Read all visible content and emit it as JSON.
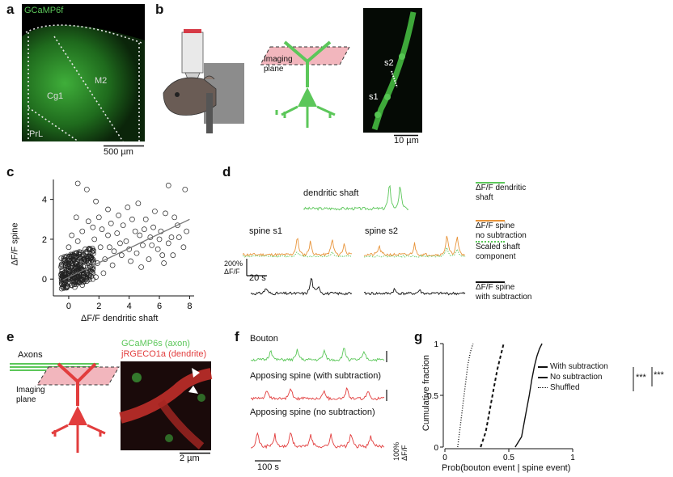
{
  "colors": {
    "green": "#5cc75a",
    "orange": "#e8943a",
    "red": "#e23d3d",
    "dark": "#111111",
    "pink": "#f2b6bd"
  },
  "panels": {
    "a": "a",
    "b": "b",
    "c": "c",
    "d": "d",
    "e": "e",
    "f": "f",
    "g": "g"
  },
  "a": {
    "indicator": "GCaMP6f",
    "regions": [
      "M2",
      "Cg1",
      "PrL"
    ],
    "scalebar": "500 µm"
  },
  "b": {
    "imaging_plane": "Imaging\nplane",
    "spines": [
      "s2",
      "s1"
    ],
    "scalebar": "10 µm"
  },
  "c": {
    "xlabel": "ΔF/F dendritic shaft",
    "ylabel": "ΔF/F spine"
  },
  "chart_data": {
    "type": "scatter",
    "xlabel": "ΔF/F dendritic shaft",
    "ylabel": "ΔF/F spine",
    "xticks": [
      "0",
      "2",
      "4",
      "6",
      "8"
    ],
    "yticks": [
      "0",
      "2",
      "4"
    ],
    "xlim": [
      -0.8,
      8.3
    ],
    "ylim": [
      -0.6,
      5
    ],
    "fit_line": [
      [
        -0.4,
        -0.05
      ],
      [
        8.0,
        3.0
      ]
    ],
    "points": [
      [
        0.6,
        4.8
      ],
      [
        1.2,
        4.5
      ],
      [
        6.6,
        4.7
      ],
      [
        7.7,
        4.5
      ],
      [
        1.8,
        3.9
      ],
      [
        2.6,
        3.5
      ],
      [
        3.3,
        3.2
      ],
      [
        3.9,
        3.6
      ],
      [
        4.6,
        3.8
      ],
      [
        5.1,
        3.0
      ],
      [
        5.6,
        2.6
      ],
      [
        6.1,
        2.4
      ],
      [
        6.4,
        3.3
      ],
      [
        6.8,
        2.1
      ],
      [
        7.2,
        2.7
      ],
      [
        7.8,
        2.4
      ],
      [
        7.6,
        1.6
      ],
      [
        6.9,
        1.2
      ],
      [
        5.9,
        1.5
      ],
      [
        5.4,
        2.1
      ],
      [
        4.9,
        1.7
      ],
      [
        4.4,
        2.4
      ],
      [
        3.8,
        1.9
      ],
      [
        3.2,
        2.3
      ],
      [
        2.7,
        1.6
      ],
      [
        2.2,
        2.5
      ],
      [
        1.7,
        2.0
      ],
      [
        1.3,
        2.9
      ],
      [
        0.9,
        2.4
      ],
      [
        0.5,
        3.1
      ],
      [
        0.2,
        2.2
      ],
      [
        0.0,
        1.6
      ],
      [
        -0.2,
        1.1
      ],
      [
        0.4,
        1.3
      ],
      [
        0.8,
        0.9
      ],
      [
        1.1,
        1.5
      ],
      [
        1.5,
        1.1
      ],
      [
        1.9,
        0.8
      ],
      [
        2.4,
        1.0
      ],
      [
        2.9,
        0.7
      ],
      [
        3.5,
        1.2
      ],
      [
        4.1,
        0.9
      ],
      [
        4.8,
        0.6
      ],
      [
        5.3,
        1.0
      ],
      [
        6.3,
        0.8
      ],
      [
        -0.4,
        0.2
      ],
      [
        -0.1,
        0.5
      ],
      [
        0.3,
        0.3
      ],
      [
        0.7,
        0.5
      ],
      [
        1.0,
        0.2
      ],
      [
        1.4,
        0.4
      ],
      [
        1.8,
        0.1
      ],
      [
        2.3,
        0.3
      ],
      [
        0.1,
        -0.2
      ],
      [
        -0.3,
        -0.3
      ],
      [
        0.5,
        -0.1
      ],
      [
        0.9,
        -0.3
      ],
      [
        1.2,
        -0.1
      ],
      [
        -0.5,
        0.6
      ],
      [
        0.2,
        0.8
      ],
      [
        0.6,
        1.9
      ],
      [
        1.6,
        2.6
      ],
      [
        2.0,
        3.1
      ],
      [
        2.8,
        2.8
      ],
      [
        3.6,
        2.7
      ],
      [
        4.2,
        3.0
      ],
      [
        4.7,
        2.2
      ],
      [
        5.7,
        3.4
      ],
      [
        6.6,
        1.8
      ],
      [
        7.3,
        2.1
      ],
      [
        0.0,
        0.0
      ],
      [
        0.3,
        1.0
      ],
      [
        -0.2,
        0.7
      ],
      [
        0.8,
        0.0
      ],
      [
        1.6,
        0.6
      ],
      [
        2.1,
        1.6
      ],
      [
        2.6,
        2.2
      ],
      [
        3.0,
        1.4
      ],
      [
        3.4,
        1.8
      ],
      [
        4.0,
        1.5
      ],
      [
        4.5,
        1.3
      ],
      [
        5.0,
        2.5
      ],
      [
        5.5,
        1.7
      ],
      [
        6.0,
        2.0
      ],
      [
        6.2,
        1.2
      ],
      [
        7.0,
        3.1
      ],
      [
        -0.4,
        -0.4
      ],
      [
        0.4,
        -0.4
      ],
      [
        1.3,
        0.8
      ],
      [
        0.1,
        0.4
      ]
    ]
  },
  "d": {
    "dendritic_shaft": "dendritic shaft",
    "spine_s1": "spine s1",
    "spine_s2": "spine s2",
    "legend": [
      {
        "label": "ΔF/F dendritic\nshaft",
        "color": "#5cc75a",
        "style": "solid"
      },
      {
        "label": "ΔF/F spine\nno subtraction",
        "color": "#e8943a",
        "style": "solid"
      },
      {
        "label": "Scaled shaft\ncomponent",
        "color": "#5cc75a",
        "style": "dotted"
      },
      {
        "label": "ΔF/F spine\nwith subtraction",
        "color": "#111111",
        "style": "solid"
      }
    ],
    "scale_y": "200%\nΔF/F",
    "scale_x": "20 s"
  },
  "e": {
    "axons": "Axons",
    "imaging_plane": "Imaging\nplane",
    "indicator_axon": "GCaMP6s (axon)",
    "indicator_dendrite": "jRGECO1a (dendrite)",
    "scalebar": "2 µm"
  },
  "f": {
    "bouton": "Bouton",
    "apposing_with": "Apposing spine (with subtraction)",
    "apposing_no": "Apposing spine (no subtraction)",
    "scale_y": "100%\nΔF/F",
    "scale_x": "100 s"
  },
  "g": {
    "ylabel": "Cumulative fraction",
    "xlabel": "Prob(bouton event | spine event)",
    "yticks": [
      "0",
      "0.5",
      "1"
    ],
    "xticks": [
      "0",
      "0.5",
      "1"
    ],
    "legend": [
      {
        "label": "With subtraction",
        "style": "solid"
      },
      {
        "label": "No subtraction",
        "style": "dashed"
      },
      {
        "label": "Shuffled",
        "style": "dotted"
      }
    ],
    "significance": [
      "***",
      "***"
    ],
    "cdf": [
      {
        "name": "With subtraction",
        "x": [
          0.55,
          0.6,
          0.63,
          0.66,
          0.68,
          0.7,
          0.72,
          0.74,
          0.76
        ],
        "y": [
          0,
          0.1,
          0.3,
          0.5,
          0.65,
          0.78,
          0.88,
          0.95,
          1
        ]
      },
      {
        "name": "No subtraction",
        "x": [
          0.28,
          0.32,
          0.35,
          0.38,
          0.41,
          0.44,
          0.46
        ],
        "y": [
          0,
          0.15,
          0.35,
          0.55,
          0.75,
          0.9,
          1
        ]
      },
      {
        "name": "Shuffled",
        "x": [
          0.1,
          0.12,
          0.14,
          0.16,
          0.18,
          0.2,
          0.22
        ],
        "y": [
          0,
          0.2,
          0.4,
          0.6,
          0.8,
          0.92,
          1
        ]
      }
    ]
  }
}
